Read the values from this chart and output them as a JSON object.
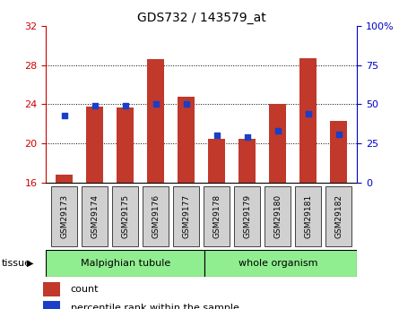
{
  "title": "GDS732 / 143579_at",
  "samples": [
    "GSM29173",
    "GSM29174",
    "GSM29175",
    "GSM29176",
    "GSM29177",
    "GSM29178",
    "GSM29179",
    "GSM29180",
    "GSM29181",
    "GSM29182"
  ],
  "counts": [
    16.8,
    23.8,
    23.7,
    28.6,
    24.8,
    20.5,
    20.5,
    24.0,
    28.7,
    22.3
  ],
  "percentiles": [
    43,
    49,
    49,
    50,
    50,
    30,
    29,
    33,
    44,
    31
  ],
  "baseline": 16,
  "ylim_left": [
    16,
    32
  ],
  "ylim_right": [
    0,
    100
  ],
  "yticks_left": [
    16,
    20,
    24,
    28,
    32
  ],
  "yticks_right": [
    0,
    25,
    50,
    75,
    100
  ],
  "bar_color": "#c0392b",
  "dot_color": "#1a3ec8",
  "background_color": "#ffffff",
  "tissue_bg": "#90ee90",
  "grid_color": "#000000",
  "tick_color_left": "#cc0000",
  "tick_color_right": "#0000cc",
  "bar_width": 0.55,
  "plot_bg": "#ffffff",
  "xticklabel_bg": "#d0d0d0"
}
